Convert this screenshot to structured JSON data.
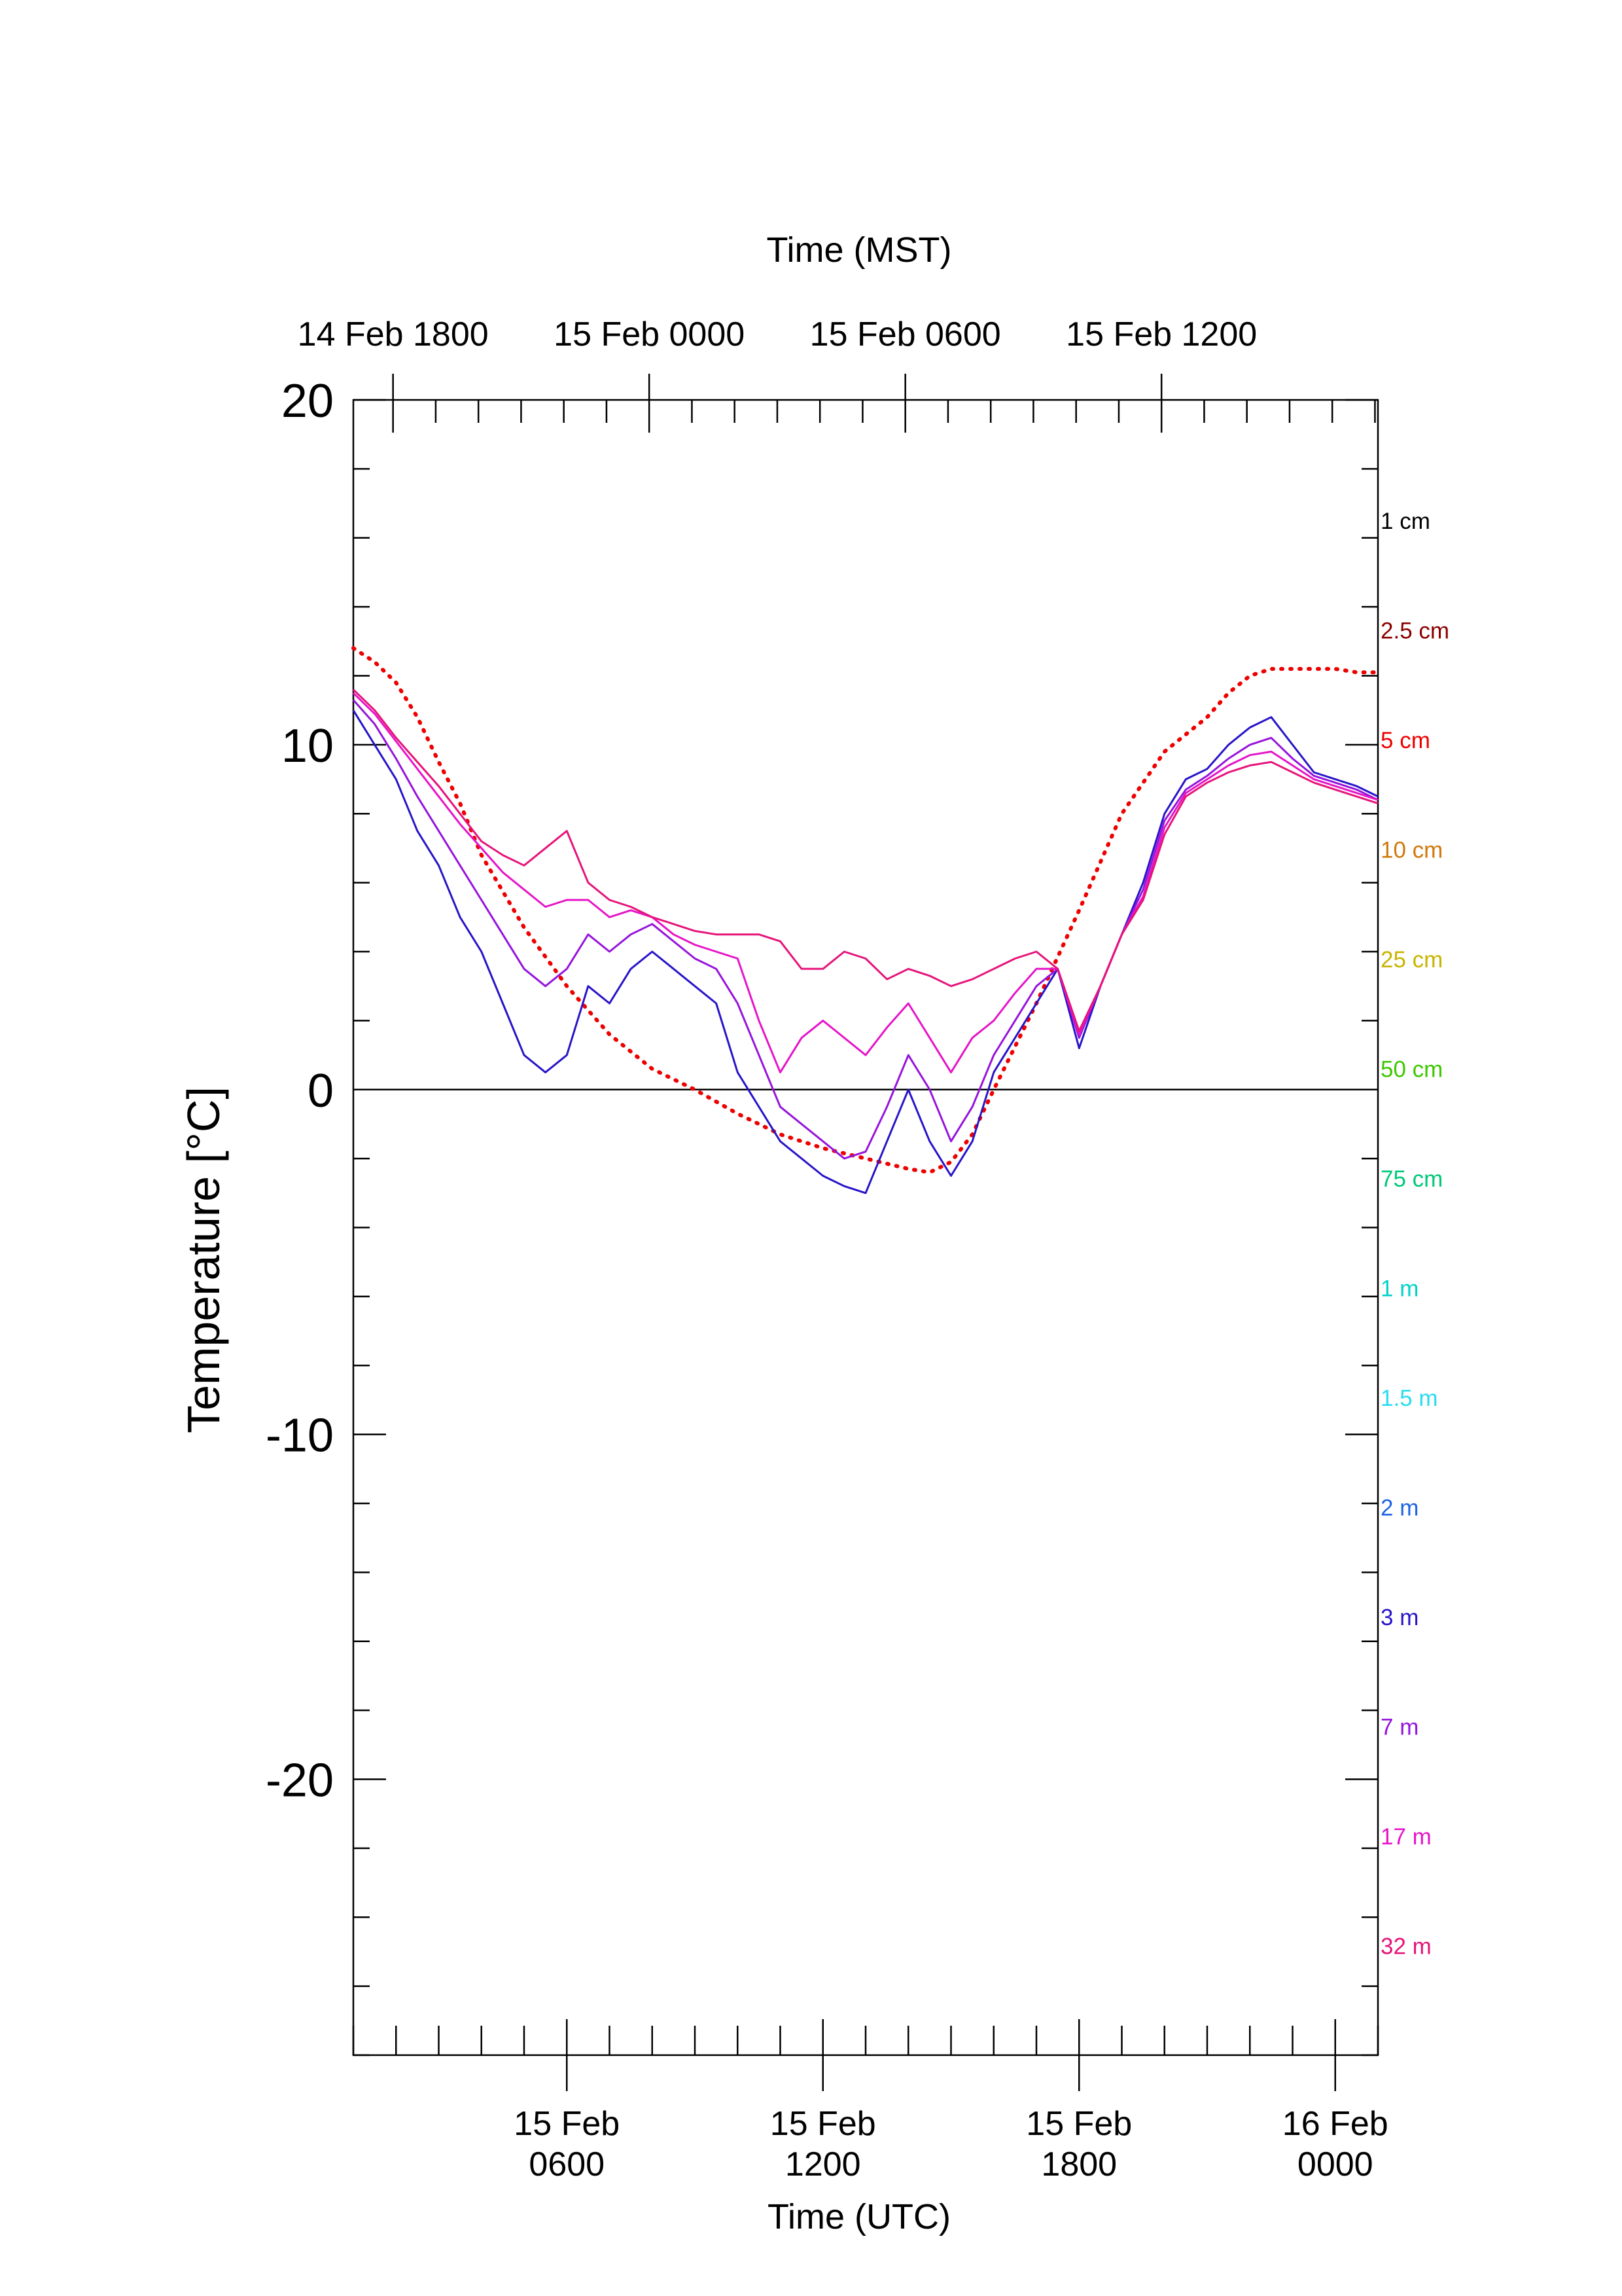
{
  "chart_data": {
    "type": "line",
    "title": "",
    "ylabel": "Temperature [°C]",
    "xlabel_bottom": "Time (UTC)",
    "xlabel_top": "Time (MST)",
    "ylim": [
      -28,
      20
    ],
    "xlim_hours_utc": [
      1,
      25
    ],
    "y_ticks": [
      20,
      10,
      0,
      -10,
      -20
    ],
    "y_tick_labels": [
      "20",
      "10",
      "0",
      "-10",
      "-20"
    ],
    "x_ticks_bottom": [
      {
        "hour": 6,
        "line1": "15 Feb",
        "line2": "0600"
      },
      {
        "hour": 12,
        "line1": "15 Feb",
        "line2": "1200"
      },
      {
        "hour": 18,
        "line1": "15 Feb",
        "line2": "1800"
      },
      {
        "hour": 24,
        "line1": "16 Feb",
        "line2": "0000"
      }
    ],
    "x_ticks_top": [
      {
        "hour": 1.93,
        "label": "14 Feb 1800"
      },
      {
        "hour": 7.93,
        "label": "15 Feb 0000"
      },
      {
        "hour": 13.93,
        "label": "15 Feb 0600"
      },
      {
        "hour": 19.93,
        "label": "15 Feb 1200"
      }
    ],
    "zero_line": true,
    "legend_position": "right",
    "legend": [
      {
        "label": "1 cm",
        "color": "#000000"
      },
      {
        "label": "2.5 cm",
        "color": "#8b0000"
      },
      {
        "label": "5 cm",
        "color": "#ee0000"
      },
      {
        "label": "10 cm",
        "color": "#d2780a"
      },
      {
        "label": "25 cm",
        "color": "#c8b400"
      },
      {
        "label": "50 cm",
        "color": "#3cc800"
      },
      {
        "label": "75 cm",
        "color": "#00c878"
      },
      {
        "label": "1 m",
        "color": "#00d2c8"
      },
      {
        "label": "1.5 m",
        "color": "#28dcf0"
      },
      {
        "label": "2 m",
        "color": "#1e64e6"
      },
      {
        "label": "3 m",
        "color": "#2814c8"
      },
      {
        "label": "7 m",
        "color": "#9614dc"
      },
      {
        "label": "17 m",
        "color": "#e614c8"
      },
      {
        "label": "32 m",
        "color": "#e6147a"
      }
    ],
    "series": [
      {
        "legend_ref": "5 cm",
        "style": "dotted",
        "color": "#ee0000",
        "x": [
          1,
          1.5,
          2,
          2.5,
          3,
          3.5,
          4,
          5,
          6,
          7,
          8,
          9,
          10,
          11,
          12,
          13,
          14,
          14.5,
          15,
          15.5,
          16,
          17,
          18,
          19,
          20,
          21,
          21.5,
          22,
          22.5,
          23,
          23.5,
          24,
          24.5,
          25
        ],
        "y": [
          12.8,
          12.4,
          11.8,
          10.8,
          9.5,
          8.3,
          6.8,
          4.7,
          3.0,
          1.6,
          0.6,
          0.0,
          -0.7,
          -1.3,
          -1.7,
          -2.0,
          -2.3,
          -2.4,
          -2.1,
          -1.3,
          0.0,
          2.5,
          5.2,
          8.0,
          9.8,
          10.8,
          11.5,
          12.0,
          12.2,
          12.2,
          12.2,
          12.2,
          12.1,
          12.1
        ]
      },
      {
        "legend_ref": "3 m",
        "color": "#2814c8",
        "x": [
          1,
          1.5,
          2,
          2.5,
          3,
          3.5,
          4,
          4.5,
          5,
          5.5,
          6,
          6.5,
          7,
          7.5,
          8,
          8.5,
          9,
          9.5,
          10,
          10.5,
          11,
          11.5,
          12,
          12.5,
          13,
          13.5,
          14,
          14.5,
          15,
          15.5,
          16,
          16.5,
          17,
          17.5,
          18,
          18.5,
          19,
          19.5,
          20,
          20.5,
          21,
          21.5,
          22,
          22.5,
          23,
          23.5,
          24,
          24.5,
          25
        ],
        "y": [
          11.0,
          10.0,
          9.0,
          7.5,
          6.5,
          5.0,
          4.0,
          2.5,
          1.0,
          0.5,
          1.0,
          3.0,
          2.5,
          3.5,
          4.0,
          3.5,
          3.0,
          2.5,
          0.5,
          -0.5,
          -1.5,
          -2.0,
          -2.5,
          -2.8,
          -3.0,
          -1.5,
          0.0,
          -1.5,
          -2.5,
          -1.5,
          0.5,
          1.5,
          2.5,
          3.5,
          1.2,
          3.0,
          4.5,
          6.0,
          8.0,
          9.0,
          9.3,
          10.0,
          10.5,
          10.8,
          10.0,
          9.2,
          9.0,
          8.8,
          8.5
        ]
      },
      {
        "legend_ref": "7 m",
        "color": "#9614dc",
        "x": [
          1,
          1.5,
          2,
          2.5,
          3,
          3.5,
          4,
          4.5,
          5,
          5.5,
          6,
          6.5,
          7,
          7.5,
          8,
          8.5,
          9,
          9.5,
          10,
          10.5,
          11,
          11.5,
          12,
          12.5,
          13,
          13.5,
          14,
          14.5,
          15,
          15.5,
          16,
          16.5,
          17,
          17.5,
          18,
          18.5,
          19,
          19.5,
          20,
          20.5,
          21,
          21.5,
          22,
          22.5,
          23,
          23.5,
          24,
          24.5,
          25
        ],
        "y": [
          11.3,
          10.6,
          9.6,
          8.5,
          7.5,
          6.5,
          5.5,
          4.5,
          3.5,
          3.0,
          3.5,
          4.5,
          4.0,
          4.5,
          4.8,
          4.3,
          3.8,
          3.5,
          2.5,
          1.0,
          -0.5,
          -1.0,
          -1.5,
          -2.0,
          -1.8,
          -0.5,
          1.0,
          0.0,
          -1.5,
          -0.5,
          1.0,
          2.0,
          3.0,
          3.5,
          1.5,
          3.0,
          4.5,
          5.8,
          7.8,
          8.7,
          9.1,
          9.6,
          10.0,
          10.2,
          9.6,
          9.1,
          8.9,
          8.7,
          8.4
        ]
      },
      {
        "legend_ref": "17 m",
        "color": "#e614c8",
        "x": [
          1,
          1.5,
          2,
          2.5,
          3,
          3.5,
          4,
          4.5,
          5,
          5.5,
          6,
          6.5,
          7,
          7.5,
          8,
          8.5,
          9,
          9.5,
          10,
          10.5,
          11,
          11.5,
          12,
          12.5,
          13,
          13.5,
          14,
          14.5,
          15,
          15.5,
          16,
          16.5,
          17,
          17.5,
          18,
          18.5,
          19,
          19.5,
          20,
          20.5,
          21,
          21.5,
          22,
          22.5,
          23,
          23.5,
          24,
          24.5,
          25
        ],
        "y": [
          11.5,
          10.9,
          10.1,
          9.3,
          8.5,
          7.7,
          7.0,
          6.3,
          5.8,
          5.3,
          5.5,
          5.5,
          5.0,
          5.2,
          5.0,
          4.5,
          4.2,
          4.0,
          3.8,
          2.0,
          0.5,
          1.5,
          2.0,
          1.5,
          1.0,
          1.8,
          2.5,
          1.5,
          0.5,
          1.5,
          2.0,
          2.8,
          3.5,
          3.5,
          1.6,
          3.0,
          4.5,
          5.6,
          7.6,
          8.6,
          9.0,
          9.4,
          9.7,
          9.8,
          9.4,
          9.0,
          8.8,
          8.6,
          8.4
        ]
      },
      {
        "legend_ref": "32 m",
        "color": "#e6147a",
        "x": [
          1,
          1.5,
          2,
          2.5,
          3,
          3.5,
          4,
          4.5,
          5,
          5.5,
          6,
          6.5,
          7,
          7.5,
          8,
          8.5,
          9,
          9.5,
          10,
          10.5,
          11,
          11.5,
          12,
          12.5,
          13,
          13.5,
          14,
          14.5,
          15,
          15.5,
          16,
          16.5,
          17,
          17.5,
          18,
          18.5,
          19,
          19.5,
          20,
          20.5,
          21,
          21.5,
          22,
          22.5,
          23,
          23.5,
          24,
          24.5,
          25
        ],
        "y": [
          11.6,
          11.0,
          10.2,
          9.5,
          8.8,
          8.0,
          7.2,
          6.8,
          6.5,
          7.0,
          7.5,
          6.0,
          5.5,
          5.3,
          5.0,
          4.8,
          4.6,
          4.5,
          4.5,
          4.5,
          4.3,
          3.5,
          3.5,
          4.0,
          3.8,
          3.2,
          3.5,
          3.3,
          3.0,
          3.2,
          3.5,
          3.8,
          4.0,
          3.5,
          1.7,
          3.0,
          4.5,
          5.5,
          7.4,
          8.5,
          8.9,
          9.2,
          9.4,
          9.5,
          9.2,
          8.9,
          8.7,
          8.5,
          8.3
        ]
      }
    ]
  }
}
